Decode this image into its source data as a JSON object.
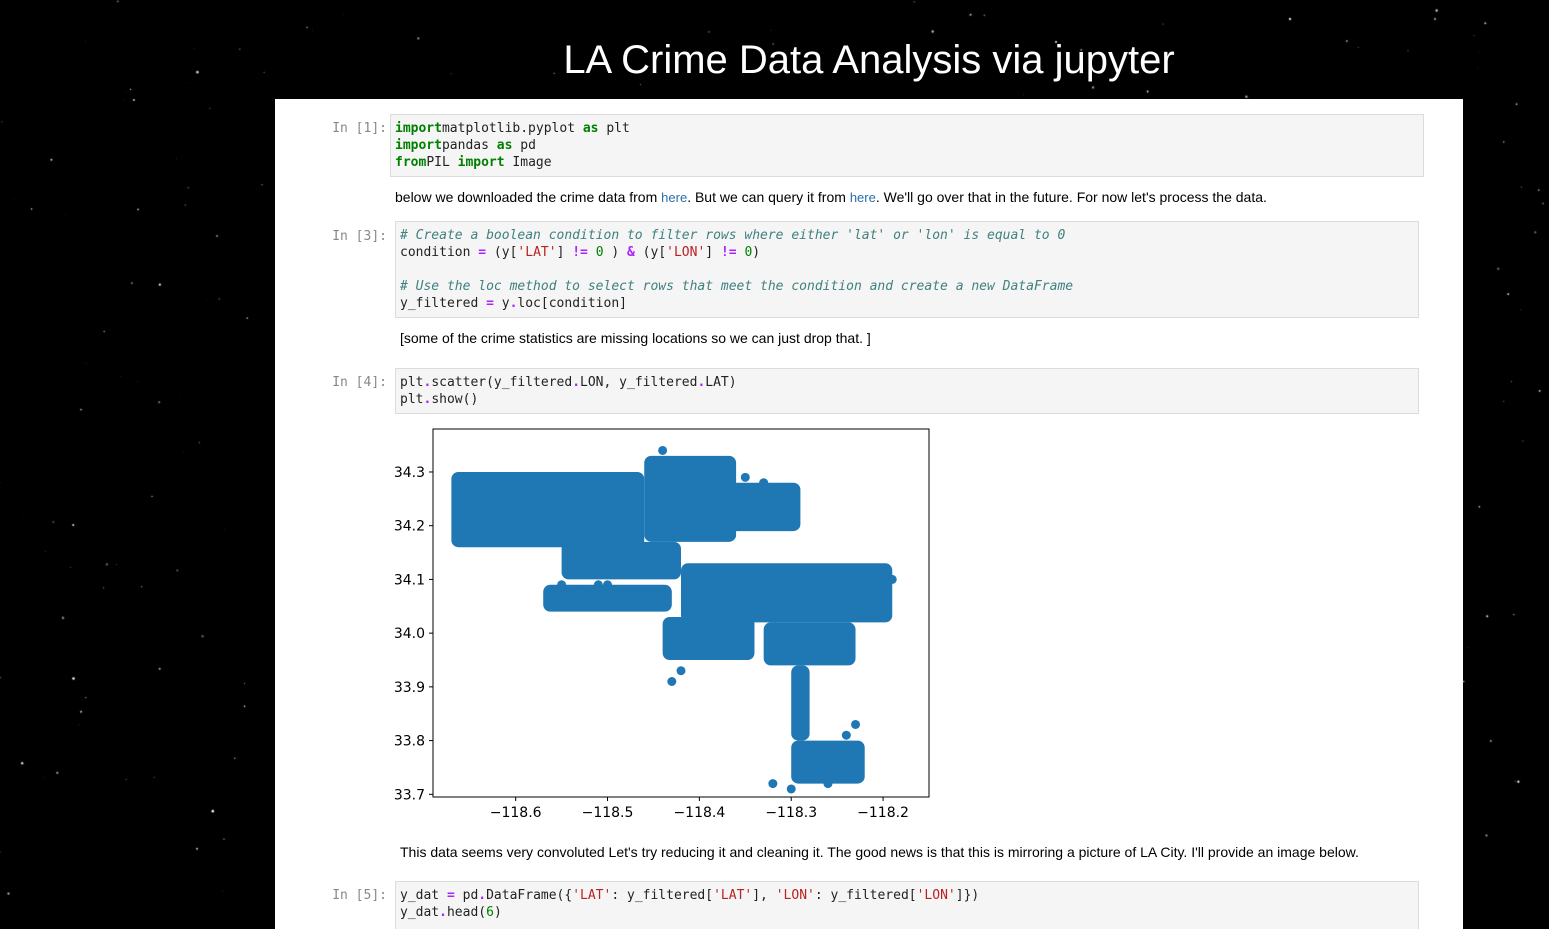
{
  "page": {
    "title": "LA Crime Data Analysis via jupyter"
  },
  "cells": {
    "c1": {
      "prompt": "In [1]:",
      "lines": [
        [
          [
            "kw",
            "import"
          ],
          [
            "",
            "matplotlib.pyplot "
          ],
          [
            "kw",
            "as"
          ],
          [
            "",
            " plt"
          ]
        ],
        [
          [
            "kw",
            "import"
          ],
          [
            "",
            "pandas "
          ],
          [
            "kw",
            "as"
          ],
          [
            "",
            " pd"
          ]
        ],
        [
          [
            "kw",
            "from"
          ],
          [
            "",
            "PIL "
          ],
          [
            "kw",
            "import"
          ],
          [
            "",
            " Image"
          ]
        ]
      ]
    },
    "md1": {
      "text_before": "below we downloaded the crime data from ",
      "link1": "here",
      "text_middle": ". But we can query it from ",
      "link2": "here",
      "text_after": ". We'll go over that in the future. For now let's process the data."
    },
    "c3": {
      "prompt": "In [3]:",
      "lines": [
        [
          [
            "cm",
            "# Create a boolean condition to filter rows where either 'lat' or 'lon' is equal to 0"
          ]
        ],
        [
          [
            "",
            "condition "
          ],
          [
            "op",
            "="
          ],
          [
            "",
            " (y["
          ],
          [
            "str",
            "'LAT'"
          ],
          [
            "",
            "] "
          ],
          [
            "op",
            "!="
          ],
          [
            "",
            " "
          ],
          [
            "num",
            "0"
          ],
          [
            "",
            " ) "
          ],
          [
            "op",
            "&"
          ],
          [
            "",
            " (y["
          ],
          [
            "str",
            "'LON'"
          ],
          [
            "",
            "] "
          ],
          [
            "op",
            "!="
          ],
          [
            "",
            " "
          ],
          [
            "num",
            "0"
          ],
          [
            "",
            ")"
          ]
        ],
        [
          [
            "",
            ""
          ]
        ],
        [
          [
            "cm",
            "# Use the loc method to select rows that meet the condition and create a new DataFrame"
          ]
        ],
        [
          [
            "",
            "y_filtered "
          ],
          [
            "op",
            "="
          ],
          [
            "",
            " y"
          ],
          [
            "op",
            "."
          ],
          [
            "",
            "loc[condition]"
          ]
        ]
      ]
    },
    "md2": {
      "text": "[some of the crime statistics are missing locations so we can just drop that. ]"
    },
    "c4": {
      "prompt": "In [4]:",
      "lines": [
        [
          [
            "",
            "plt"
          ],
          [
            "op",
            "."
          ],
          [
            "",
            "scatter(y_filtered"
          ],
          [
            "op",
            "."
          ],
          [
            "",
            "LON, y_filtered"
          ],
          [
            "op",
            "."
          ],
          [
            "",
            "LAT)"
          ]
        ],
        [
          [
            "",
            "plt"
          ],
          [
            "op",
            "."
          ],
          [
            "",
            "show()"
          ]
        ]
      ]
    },
    "md3": {
      "text": "This data seems very convoluted Let's try reducing it and cleaning it. The good news is that this is mirroring a picture of LA City. I'll provide an image below."
    },
    "c5": {
      "prompt": "In [5]:",
      "lines": [
        [
          [
            "",
            "y_dat "
          ],
          [
            "op",
            "="
          ],
          [
            "",
            " pd"
          ],
          [
            "op",
            "."
          ],
          [
            "",
            "DataFrame({"
          ],
          [
            "str",
            "'LAT'"
          ],
          [
            "",
            ": y_filtered["
          ],
          [
            "str",
            "'LAT'"
          ],
          [
            "",
            "], "
          ],
          [
            "str",
            "'LON'"
          ],
          [
            "",
            ": y_filtered["
          ],
          [
            "str",
            "'LON'"
          ],
          [
            "",
            "]})"
          ]
        ],
        [
          [
            "",
            "y_dat"
          ],
          [
            "op",
            "."
          ],
          [
            "",
            "head("
          ],
          [
            "num",
            "6"
          ],
          [
            "",
            ")"
          ]
        ]
      ]
    }
  },
  "chart_data": {
    "type": "scatter",
    "color": "#1f77b4",
    "xlim": [
      -118.69,
      -118.15
    ],
    "ylim": [
      33.695,
      34.38
    ],
    "xticks": [
      -118.6,
      -118.5,
      -118.4,
      -118.3,
      -118.2
    ],
    "xtick_labels": [
      "−118.6",
      "−118.5",
      "−118.4",
      "−118.3",
      "−118.2"
    ],
    "yticks": [
      33.7,
      33.8,
      33.9,
      34.0,
      34.1,
      34.2,
      34.3
    ],
    "ytick_labels": [
      "33.7",
      "33.8",
      "33.9",
      "34.0",
      "34.1",
      "34.2",
      "34.3"
    ],
    "grid": false,
    "title": "",
    "xlabel": "",
    "ylabel": "",
    "regions": [
      {
        "lon": [
          -118.67,
          -118.46
        ],
        "lat": [
          34.16,
          34.3
        ]
      },
      {
        "lon": [
          -118.46,
          -118.36
        ],
        "lat": [
          34.17,
          34.33
        ]
      },
      {
        "lon": [
          -118.37,
          -118.29
        ],
        "lat": [
          34.19,
          34.28
        ]
      },
      {
        "lon": [
          -118.55,
          -118.42
        ],
        "lat": [
          34.1,
          34.17
        ]
      },
      {
        "lon": [
          -118.42,
          -118.19
        ],
        "lat": [
          34.02,
          34.13
        ]
      },
      {
        "lon": [
          -118.57,
          -118.43
        ],
        "lat": [
          34.04,
          34.09
        ]
      },
      {
        "lon": [
          -118.44,
          -118.34
        ],
        "lat": [
          33.95,
          34.03
        ]
      },
      {
        "lon": [
          -118.33,
          -118.23
        ],
        "lat": [
          33.94,
          34.02
        ]
      },
      {
        "lon": [
          -118.3,
          -118.28
        ],
        "lat": [
          33.8,
          33.94
        ]
      },
      {
        "lon": [
          -118.3,
          -118.22
        ],
        "lat": [
          33.72,
          33.8
        ]
      }
    ],
    "points": [
      [
        -118.44,
        34.34
      ],
      [
        -118.35,
        34.29
      ],
      [
        -118.33,
        34.28
      ],
      [
        -118.55,
        34.09
      ],
      [
        -118.53,
        34.08
      ],
      [
        -118.51,
        34.09
      ],
      [
        -118.5,
        34.09
      ],
      [
        -118.24,
        33.81
      ],
      [
        -118.23,
        33.83
      ],
      [
        -118.25,
        33.73
      ],
      [
        -118.23,
        33.74
      ],
      [
        -118.25,
        33.78
      ],
      [
        -118.64,
        34.18
      ],
      [
        -118.19,
        34.1
      ],
      [
        -118.2,
        34.08
      ],
      [
        -118.43,
        33.91
      ],
      [
        -118.42,
        33.93
      ],
      [
        -118.32,
        33.72
      ],
      [
        -118.3,
        33.71
      ],
      [
        -118.26,
        33.72
      ]
    ]
  }
}
